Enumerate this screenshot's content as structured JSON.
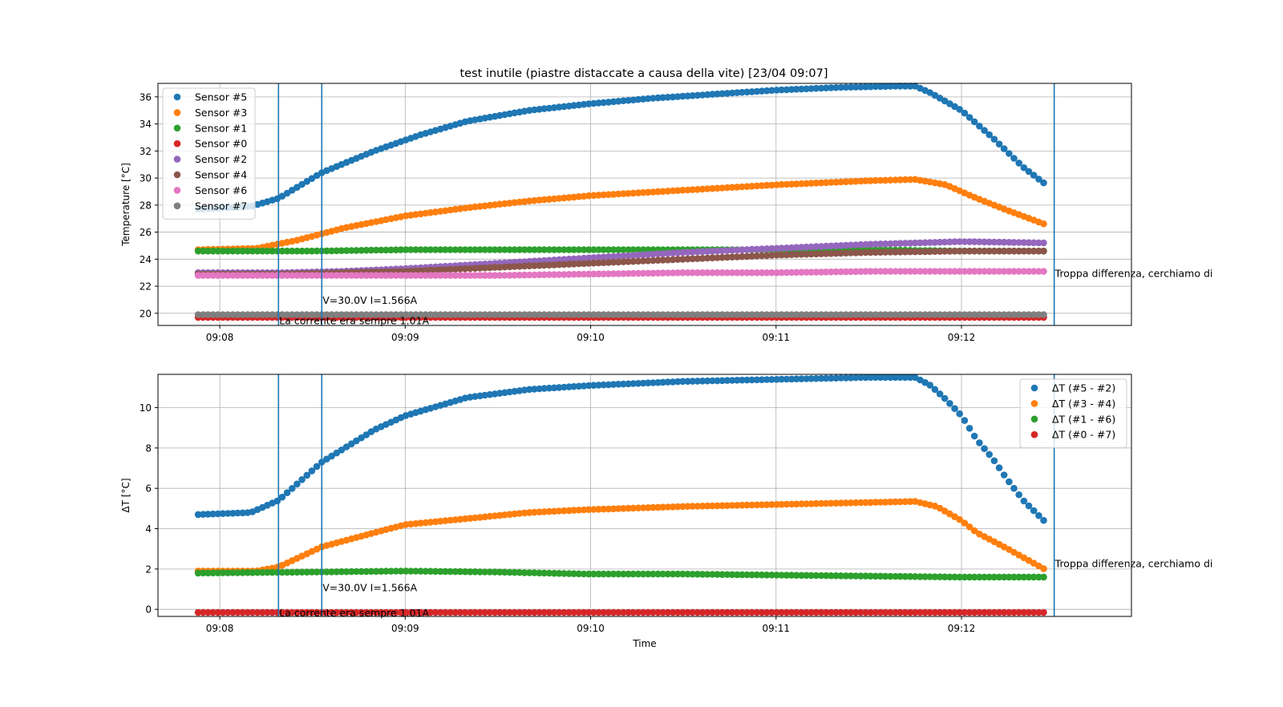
{
  "title": "test inutile (piastre distaccate a causa della vite) [23/04 09:07]",
  "chart_data": [
    {
      "type": "scatter",
      "xlabel": "",
      "ylabel": "Temperature [°C]",
      "ylim": [
        19.1,
        37.0
      ],
      "xlim": [
        "09:07:40",
        "09:12:55"
      ],
      "x_ticks": [
        "09:08",
        "09:09",
        "09:10",
        "09:11",
        "09:12"
      ],
      "y_ticks": [
        20,
        22,
        24,
        26,
        28,
        30,
        32,
        34,
        36
      ],
      "grid": true,
      "legend": "top-left",
      "vlines": [
        "09:08:19",
        "09:08:33",
        "09:12:30"
      ],
      "annotations": [
        {
          "text": "V=30.0V I=1.566A",
          "x": "09:08:33",
          "y": 20.7
        },
        {
          "text": "La corrente era sempre 1.01A",
          "x": "09:08:19",
          "y": 19.2
        },
        {
          "text": "Troppa differenza, cerchiamo di",
          "x": "09:12:30",
          "y": 22.7
        }
      ],
      "series": [
        {
          "name": "Sensor #5",
          "color": "#1f77b4",
          "points": [
            [
              "09:07:53",
              27.7
            ],
            [
              "09:08:10",
              27.9
            ],
            [
              "09:08:19",
              28.5
            ],
            [
              "09:08:33",
              30.4
            ],
            [
              "09:08:50",
              32.0
            ],
            [
              "09:09:05",
              33.2
            ],
            [
              "09:09:20",
              34.2
            ],
            [
              "09:09:40",
              35.0
            ],
            [
              "09:10:00",
              35.5
            ],
            [
              "09:10:20",
              35.9
            ],
            [
              "09:10:40",
              36.2
            ],
            [
              "09:11:00",
              36.5
            ],
            [
              "09:11:20",
              36.7
            ],
            [
              "09:11:40",
              36.8
            ],
            [
              "09:11:45",
              36.8
            ],
            [
              "09:11:50",
              36.3
            ],
            [
              "09:12:00",
              35.0
            ],
            [
              "09:12:10",
              33.0
            ],
            [
              "09:12:20",
              30.8
            ],
            [
              "09:12:28",
              29.4
            ]
          ]
        },
        {
          "name": "Sensor #3",
          "color": "#ff7f0e",
          "points": [
            [
              "09:07:53",
              24.7
            ],
            [
              "09:08:12",
              24.8
            ],
            [
              "09:08:25",
              25.4
            ],
            [
              "09:08:40",
              26.3
            ],
            [
              "09:09:00",
              27.2
            ],
            [
              "09:09:20",
              27.8
            ],
            [
              "09:09:40",
              28.3
            ],
            [
              "09:10:00",
              28.7
            ],
            [
              "09:10:30",
              29.1
            ],
            [
              "09:11:00",
              29.5
            ],
            [
              "09:11:30",
              29.8
            ],
            [
              "09:11:45",
              29.9
            ],
            [
              "09:11:55",
              29.5
            ],
            [
              "09:12:05",
              28.5
            ],
            [
              "09:12:15",
              27.6
            ],
            [
              "09:12:28",
              26.5
            ]
          ]
        },
        {
          "name": "Sensor #1",
          "color": "#2ca02c",
          "points": [
            [
              "09:07:53",
              24.6
            ],
            [
              "09:08:30",
              24.6
            ],
            [
              "09:09:00",
              24.7
            ],
            [
              "09:09:30",
              24.7
            ],
            [
              "09:10:00",
              24.7
            ],
            [
              "09:10:30",
              24.7
            ],
            [
              "09:11:00",
              24.7
            ],
            [
              "09:11:30",
              24.7
            ],
            [
              "09:12:00",
              24.6
            ],
            [
              "09:12:28",
              24.6
            ]
          ]
        },
        {
          "name": "Sensor #0",
          "color": "#d62728",
          "points": [
            [
              "09:07:53",
              19.7
            ],
            [
              "09:08:30",
              19.7
            ],
            [
              "09:09:30",
              19.7
            ],
            [
              "09:10:30",
              19.7
            ],
            [
              "09:11:30",
              19.7
            ],
            [
              "09:12:28",
              19.7
            ]
          ]
        },
        {
          "name": "Sensor #2",
          "color": "#9467bd",
          "points": [
            [
              "09:07:53",
              23.0
            ],
            [
              "09:08:20",
              23.0
            ],
            [
              "09:08:40",
              23.1
            ],
            [
              "09:09:00",
              23.3
            ],
            [
              "09:09:30",
              23.7
            ],
            [
              "09:10:00",
              24.1
            ],
            [
              "09:10:30",
              24.5
            ],
            [
              "09:11:00",
              24.8
            ],
            [
              "09:11:30",
              25.1
            ],
            [
              "09:12:00",
              25.3
            ],
            [
              "09:12:28",
              25.2
            ]
          ]
        },
        {
          "name": "Sensor #4",
          "color": "#8c564b",
          "points": [
            [
              "09:07:53",
              22.9
            ],
            [
              "09:08:20",
              22.9
            ],
            [
              "09:08:40",
              23.0
            ],
            [
              "09:09:00",
              23.1
            ],
            [
              "09:09:30",
              23.4
            ],
            [
              "09:10:00",
              23.7
            ],
            [
              "09:10:30",
              24.0
            ],
            [
              "09:11:00",
              24.3
            ],
            [
              "09:11:30",
              24.5
            ],
            [
              "09:12:00",
              24.6
            ],
            [
              "09:12:28",
              24.6
            ]
          ]
        },
        {
          "name": "Sensor #6",
          "color": "#e377c2",
          "points": [
            [
              "09:07:53",
              22.8
            ],
            [
              "09:08:30",
              22.8
            ],
            [
              "09:09:30",
              22.8
            ],
            [
              "09:10:00",
              22.9
            ],
            [
              "09:10:30",
              23.0
            ],
            [
              "09:11:00",
              23.0
            ],
            [
              "09:11:30",
              23.1
            ],
            [
              "09:12:28",
              23.1
            ]
          ]
        },
        {
          "name": "Sensor #7",
          "color": "#7f7f7f",
          "points": [
            [
              "09:07:53",
              19.9
            ],
            [
              "09:08:30",
              19.9
            ],
            [
              "09:09:30",
              19.9
            ],
            [
              "09:10:30",
              19.9
            ],
            [
              "09:11:30",
              19.9
            ],
            [
              "09:12:28",
              19.9
            ]
          ]
        }
      ]
    },
    {
      "type": "scatter",
      "xlabel": "Time",
      "ylabel": "ΔT [°C]",
      "ylim": [
        -0.35,
        11.65
      ],
      "xlim": [
        "09:07:40",
        "09:12:55"
      ],
      "x_ticks": [
        "09:08",
        "09:09",
        "09:10",
        "09:11",
        "09:12"
      ],
      "y_ticks": [
        0,
        2,
        4,
        6,
        8,
        10
      ],
      "grid": true,
      "legend": "top-right",
      "vlines": [
        "09:08:19",
        "09:08:33",
        "09:12:30"
      ],
      "annotations": [
        {
          "text": "V=30.0V I=1.566A",
          "x": "09:08:33",
          "y": 0.9
        },
        {
          "text": "La corrente era sempre 1.01A",
          "x": "09:08:19",
          "y": -0.35
        },
        {
          "text": "Troppa differenza, cerchiamo di",
          "x": "09:12:30",
          "y": 2.1
        }
      ],
      "series": [
        {
          "name": "ΔT (#5 - #2)",
          "color": "#1f77b4",
          "points": [
            [
              "09:07:53",
              4.7
            ],
            [
              "09:08:10",
              4.8
            ],
            [
              "09:08:19",
              5.4
            ],
            [
              "09:08:33",
              7.3
            ],
            [
              "09:08:50",
              8.9
            ],
            [
              "09:09:00",
              9.6
            ],
            [
              "09:09:20",
              10.5
            ],
            [
              "09:09:40",
              10.9
            ],
            [
              "09:10:00",
              11.1
            ],
            [
              "09:10:30",
              11.3
            ],
            [
              "09:11:00",
              11.4
            ],
            [
              "09:11:30",
              11.5
            ],
            [
              "09:11:45",
              11.5
            ],
            [
              "09:11:50",
              11.1
            ],
            [
              "09:11:55",
              10.4
            ],
            [
              "09:12:00",
              9.6
            ],
            [
              "09:12:05",
              8.4
            ],
            [
              "09:12:10",
              7.5
            ],
            [
              "09:12:15",
              6.4
            ],
            [
              "09:12:20",
              5.4
            ],
            [
              "09:12:28",
              4.2
            ]
          ]
        },
        {
          "name": "ΔT (#3 - #4)",
          "color": "#ff7f0e",
          "points": [
            [
              "09:07:53",
              1.9
            ],
            [
              "09:08:12",
              1.9
            ],
            [
              "09:08:19",
              2.1
            ],
            [
              "09:08:33",
              3.1
            ],
            [
              "09:08:50",
              3.8
            ],
            [
              "09:09:00",
              4.2
            ],
            [
              "09:09:20",
              4.5
            ],
            [
              "09:09:40",
              4.8
            ],
            [
              "09:10:00",
              4.95
            ],
            [
              "09:10:30",
              5.1
            ],
            [
              "09:11:00",
              5.2
            ],
            [
              "09:11:30",
              5.3
            ],
            [
              "09:11:45",
              5.35
            ],
            [
              "09:11:52",
              5.1
            ],
            [
              "09:12:00",
              4.4
            ],
            [
              "09:12:05",
              3.8
            ],
            [
              "09:12:15",
              3.0
            ],
            [
              "09:12:28",
              1.9
            ]
          ]
        },
        {
          "name": "ΔT (#1 - #6)",
          "color": "#2ca02c",
          "points": [
            [
              "09:07:53",
              1.8
            ],
            [
              "09:08:30",
              1.85
            ],
            [
              "09:09:00",
              1.9
            ],
            [
              "09:09:30",
              1.85
            ],
            [
              "09:10:00",
              1.75
            ],
            [
              "09:10:30",
              1.75
            ],
            [
              "09:11:00",
              1.7
            ],
            [
              "09:11:30",
              1.65
            ],
            [
              "09:12:00",
              1.6
            ],
            [
              "09:12:28",
              1.6
            ]
          ]
        },
        {
          "name": "ΔT (#0 - #7)",
          "color": "#d62728",
          "points": [
            [
              "09:07:53",
              -0.15
            ],
            [
              "09:08:30",
              -0.15
            ],
            [
              "09:09:30",
              -0.15
            ],
            [
              "09:10:30",
              -0.15
            ],
            [
              "09:11:30",
              -0.15
            ],
            [
              "09:12:28",
              -0.15
            ]
          ]
        }
      ]
    }
  ]
}
